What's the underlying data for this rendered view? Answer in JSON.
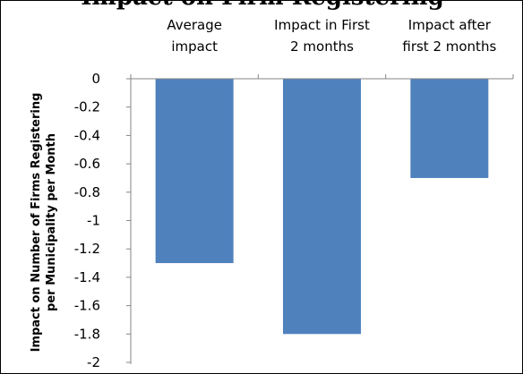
{
  "chart_data": {
    "type": "bar",
    "title": "Impact on Firm Registering",
    "categories": [
      [
        "Average",
        "impact"
      ],
      [
        "Impact in First",
        "2 months"
      ],
      [
        "Impact after",
        "first 2 months"
      ]
    ],
    "values": [
      -1.3,
      -1.8,
      -0.7
    ],
    "ylabel": [
      "Impact on Number of Firms Registering",
      "per Municipality per Month"
    ],
    "ylim": [
      -2,
      0
    ],
    "yticks": [
      "0",
      "-0.2",
      "-0.4",
      "-0.6",
      "-0.8",
      "-1",
      "-1.2",
      "-1.4",
      "-1.6",
      "-1.8",
      "-2"
    ],
    "gridlines": false,
    "legend": "none",
    "colors": {
      "bar": "#4F81BD",
      "axis": "#868686",
      "text": "#000000"
    }
  }
}
